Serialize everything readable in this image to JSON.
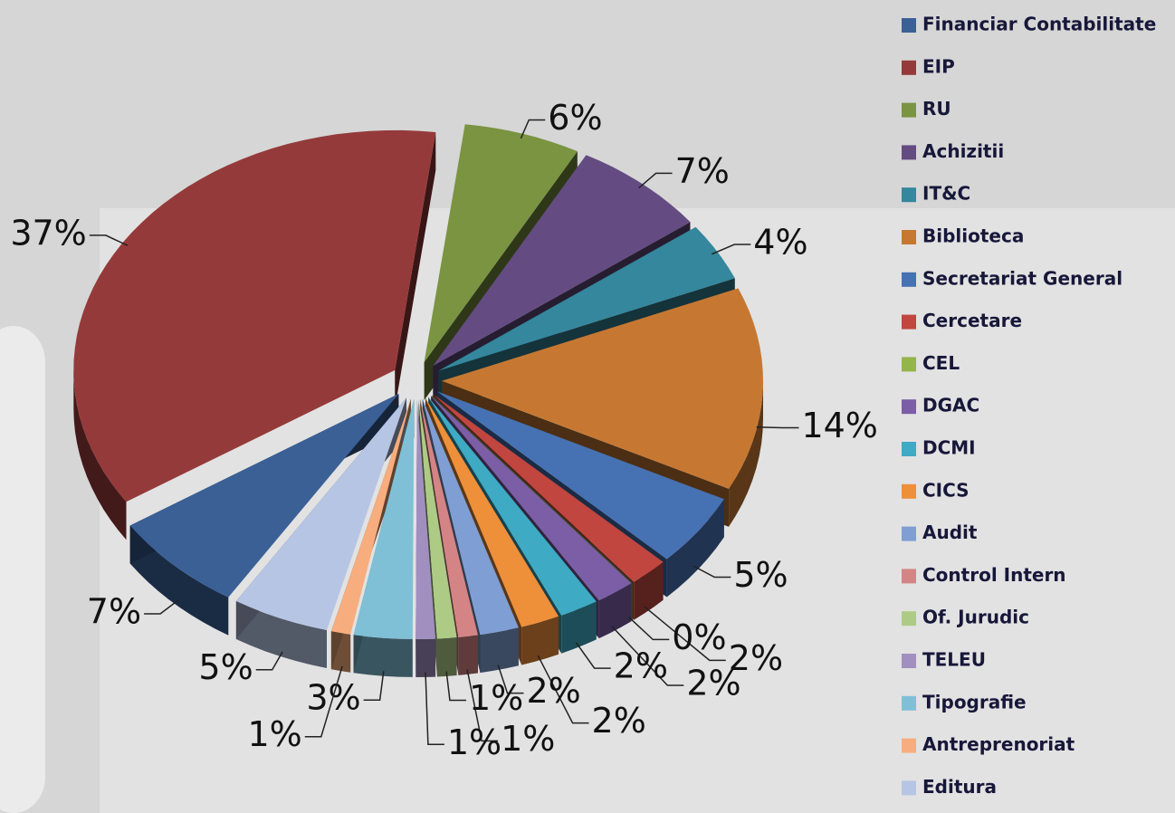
{
  "chart_data": {
    "type": "pie",
    "categories": [
      "Financiar Contabilitate",
      "EIP",
      "RU",
      "Achizitii",
      "IT&C",
      "Biblioteca",
      "Secretariat General",
      "Cercetare",
      "CEL",
      "DGAC",
      "DCMI",
      "CICS",
      "Audit",
      "Control Intern",
      "Of. Jurudic",
      "TELEU",
      "Tipografie",
      "Antreprenoriat",
      "Editura"
    ],
    "values": [
      7,
      37,
      6,
      7,
      4,
      14,
      5,
      2,
      0,
      2,
      2,
      2,
      2,
      1,
      1,
      1,
      3,
      1,
      5
    ],
    "value_labels": [
      "7%",
      "37%",
      "6%",
      "7%",
      "4%",
      "14%",
      "5%",
      "2%",
      "0%",
      "2%",
      "2%",
      "2%",
      "2%",
      "1%",
      "1%",
      "1%",
      "3%",
      "1%",
      "5%"
    ],
    "colors": [
      "#3a6096",
      "#953a3a",
      "#7a9441",
      "#644c82",
      "#34879c",
      "#c67832",
      "#4672b4",
      "#c0463f",
      "#94b54a",
      "#7b5ea6",
      "#3eaac3",
      "#ee8f3a",
      "#7f9ed3",
      "#d48484",
      "#aecb85",
      "#a18fc0",
      "#7fc0d6",
      "#f7ad7d",
      "#b7c5e4"
    ],
    "legend": "right"
  }
}
